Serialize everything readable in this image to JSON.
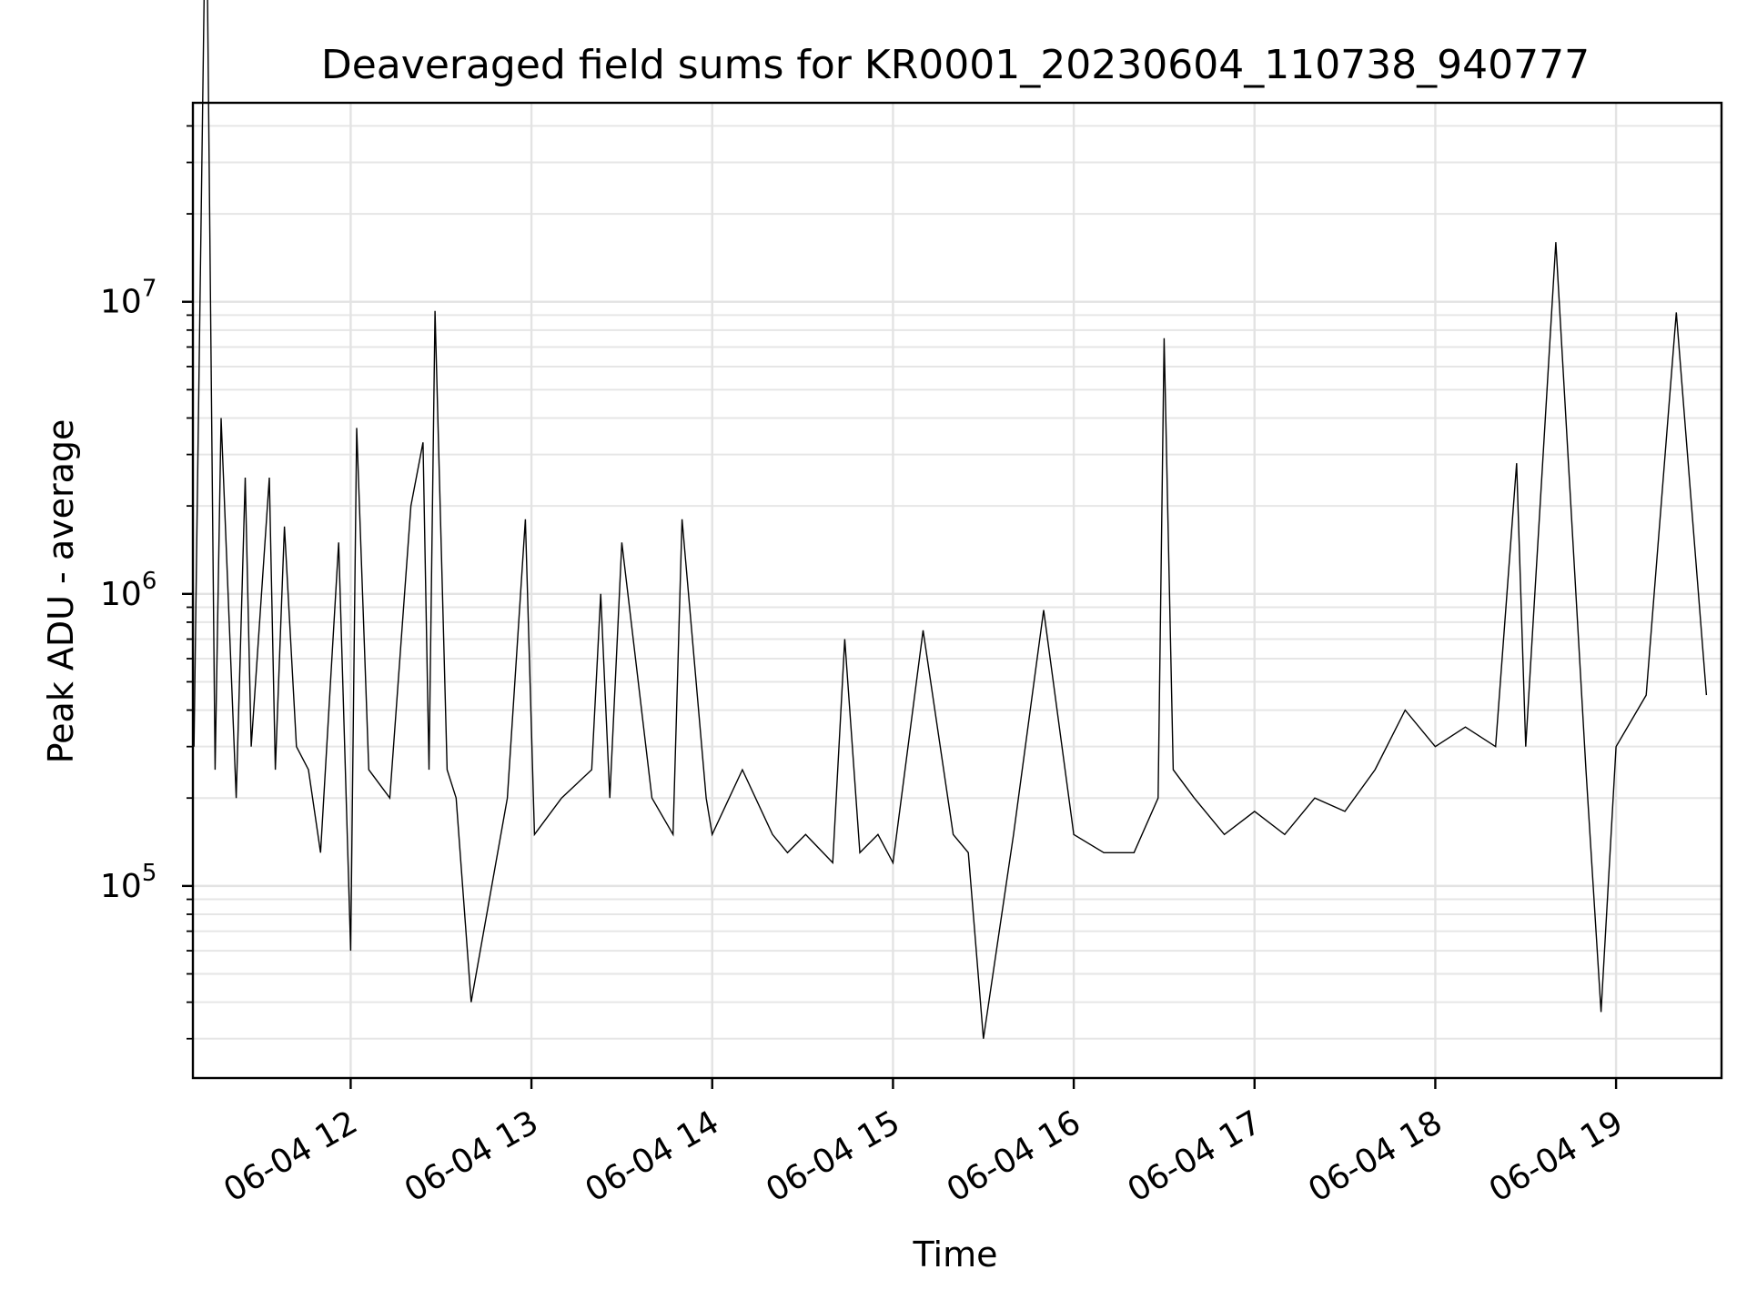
{
  "chart_data": {
    "type": "line",
    "title": "Deaveraged field sums for KR0001_20230604_110738_940777",
    "xlabel": "Time",
    "ylabel": "Peak ADU - average",
    "yscale": "log",
    "grid": true,
    "line_color": "#000000",
    "xlim": [
      "2023-06-04T11:07:38",
      "2023-06-04T19:35:00"
    ],
    "ylim": [
      22000,
      48000000
    ],
    "x_ticks": [
      {
        "t": "2023-06-04T12:00:00",
        "label": "06-04 12"
      },
      {
        "t": "2023-06-04T13:00:00",
        "label": "06-04 13"
      },
      {
        "t": "2023-06-04T14:00:00",
        "label": "06-04 14"
      },
      {
        "t": "2023-06-04T15:00:00",
        "label": "06-04 15"
      },
      {
        "t": "2023-06-04T16:00:00",
        "label": "06-04 16"
      },
      {
        "t": "2023-06-04T17:00:00",
        "label": "06-04 17"
      },
      {
        "t": "2023-06-04T18:00:00",
        "label": "06-04 18"
      },
      {
        "t": "2023-06-04T19:00:00",
        "label": "06-04 19"
      }
    ],
    "y_ticks": [
      {
        "value": 100000,
        "base": "10",
        "exp": "5"
      },
      {
        "value": 1000000,
        "base": "10",
        "exp": "6"
      },
      {
        "value": 10000000,
        "base": "10",
        "exp": "7"
      }
    ],
    "series": [
      {
        "x": [
          "2023-06-04T11:08",
          "2023-06-04T11:12",
          "2023-06-04T11:15",
          "2023-06-04T11:17",
          "2023-06-04T11:22",
          "2023-06-04T11:25",
          "2023-06-04T11:27",
          "2023-06-04T11:33",
          "2023-06-04T11:35",
          "2023-06-04T11:38",
          "2023-06-04T11:42",
          "2023-06-04T11:46",
          "2023-06-04T11:50",
          "2023-06-04T11:56",
          "2023-06-04T11:58",
          "2023-06-04T12:00",
          "2023-06-04T12:02",
          "2023-06-04T12:06",
          "2023-06-04T12:13",
          "2023-06-04T12:20",
          "2023-06-04T12:24",
          "2023-06-04T12:26",
          "2023-06-04T12:28",
          "2023-06-04T12:32",
          "2023-06-04T12:35",
          "2023-06-04T12:40",
          "2023-06-04T12:52",
          "2023-06-04T12:58",
          "2023-06-04T13:01",
          "2023-06-04T13:10",
          "2023-06-04T13:20",
          "2023-06-04T13:23",
          "2023-06-04T13:26",
          "2023-06-04T13:30",
          "2023-06-04T13:40",
          "2023-06-04T13:47",
          "2023-06-04T13:50",
          "2023-06-04T13:58",
          "2023-06-04T14:00",
          "2023-06-04T14:10",
          "2023-06-04T14:20",
          "2023-06-04T14:25",
          "2023-06-04T14:31",
          "2023-06-04T14:40",
          "2023-06-04T14:44",
          "2023-06-04T14:49",
          "2023-06-04T14:55",
          "2023-06-04T15:00",
          "2023-06-04T15:10",
          "2023-06-04T15:20",
          "2023-06-04T15:25",
          "2023-06-04T15:30",
          "2023-06-04T15:40",
          "2023-06-04T15:50",
          "2023-06-04T16:00",
          "2023-06-04T16:10",
          "2023-06-04T16:20",
          "2023-06-04T16:28",
          "2023-06-04T16:30",
          "2023-06-04T16:33",
          "2023-06-04T16:40",
          "2023-06-04T16:50",
          "2023-06-04T17:00",
          "2023-06-04T17:10",
          "2023-06-04T17:20",
          "2023-06-04T17:30",
          "2023-06-04T17:40",
          "2023-06-04T17:50",
          "2023-06-04T18:00",
          "2023-06-04T18:10",
          "2023-06-04T18:20",
          "2023-06-04T18:27",
          "2023-06-04T18:30",
          "2023-06-04T18:40",
          "2023-06-04T18:50",
          "2023-06-04T18:55",
          "2023-06-04T19:00",
          "2023-06-04T19:10",
          "2023-06-04T19:20",
          "2023-06-04T19:30"
        ],
        "y": [
          300000,
          350000000,
          250000,
          4000000,
          200000,
          2500000,
          300000,
          2500000,
          250000,
          1700000,
          300000,
          250000,
          130000,
          1500000,
          300000,
          60000,
          3700000,
          250000,
          200000,
          2000000,
          3300000,
          250000,
          9300000,
          250000,
          200000,
          40000,
          200000,
          1800000,
          150000,
          200000,
          250000,
          1000000,
          200000,
          1500000,
          200000,
          150000,
          1800000,
          200000,
          150000,
          250000,
          150000,
          130000,
          150000,
          120000,
          700000,
          130000,
          150000,
          120000,
          750000,
          150000,
          130000,
          30000,
          150000,
          880000,
          150000,
          130000,
          130000,
          200000,
          7500000,
          250000,
          200000,
          150000,
          180000,
          150000,
          200000,
          180000,
          250000,
          400000,
          300000,
          350000,
          300000,
          2800000,
          300000,
          16000000,
          250000,
          37000,
          300000,
          450000,
          9200000,
          450000
        ]
      }
    ]
  }
}
